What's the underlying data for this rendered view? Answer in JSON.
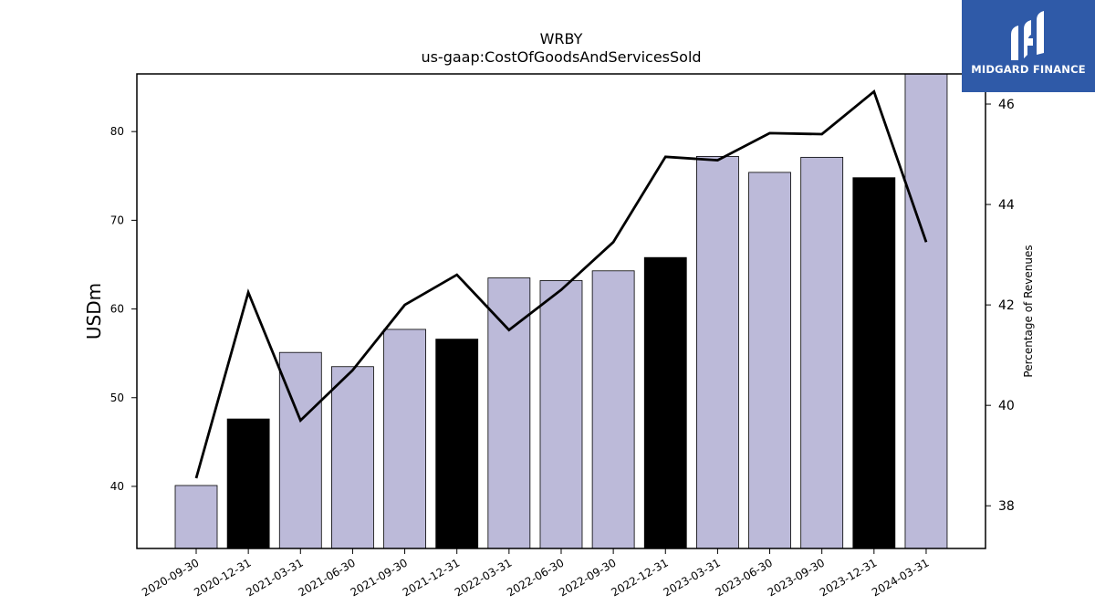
{
  "logo": {
    "text": "MIDGARD FINANCE",
    "colors": {
      "background": "#2f5aa8",
      "foreground": "#ffffff"
    }
  },
  "chart_data": {
    "type": "bar",
    "title": "WRBY",
    "subtitle": "us-gaap:CostOfGoodsAndServicesSold",
    "ylabel": "USDm",
    "y2label": "Percentage of Revenues",
    "categories": [
      "2020-09-30",
      "2020-12-31",
      "2021-03-31",
      "2021-06-30",
      "2021-09-30",
      "2021-12-31",
      "2022-03-31",
      "2022-06-30",
      "2022-09-30",
      "2022-12-31",
      "2023-03-31",
      "2023-06-30",
      "2023-09-30",
      "2023-12-31",
      "2024-03-31"
    ],
    "series": [
      {
        "type": "bar",
        "axis": "left",
        "values": [
          40.1,
          47.6,
          55.1,
          53.5,
          57.7,
          56.6,
          63.5,
          63.2,
          64.3,
          65.8,
          77.2,
          75.4,
          77.1,
          74.8,
          86.5
        ],
        "colors": [
          "#bcbad9",
          "#000000",
          "#bcbad9",
          "#bcbad9",
          "#bcbad9",
          "#000000",
          "#bcbad9",
          "#bcbad9",
          "#bcbad9",
          "#000000",
          "#bcbad9",
          "#bcbad9",
          "#bcbad9",
          "#000000",
          "#bcbad9"
        ]
      },
      {
        "type": "line",
        "axis": "right",
        "color": "#000000",
        "values": [
          38.55,
          42.25,
          39.7,
          40.7,
          42.0,
          42.6,
          41.5,
          42.3,
          43.25,
          44.95,
          44.88,
          45.42,
          45.4,
          46.25,
          43.25
        ]
      }
    ],
    "ylim": [
      33,
      86.5
    ],
    "y2lim": [
      37.15,
      46.6
    ],
    "yticks": [
      40,
      50,
      60,
      70,
      80
    ],
    "y2ticks": [
      38,
      40,
      42,
      44,
      46
    ],
    "grid": false
  }
}
